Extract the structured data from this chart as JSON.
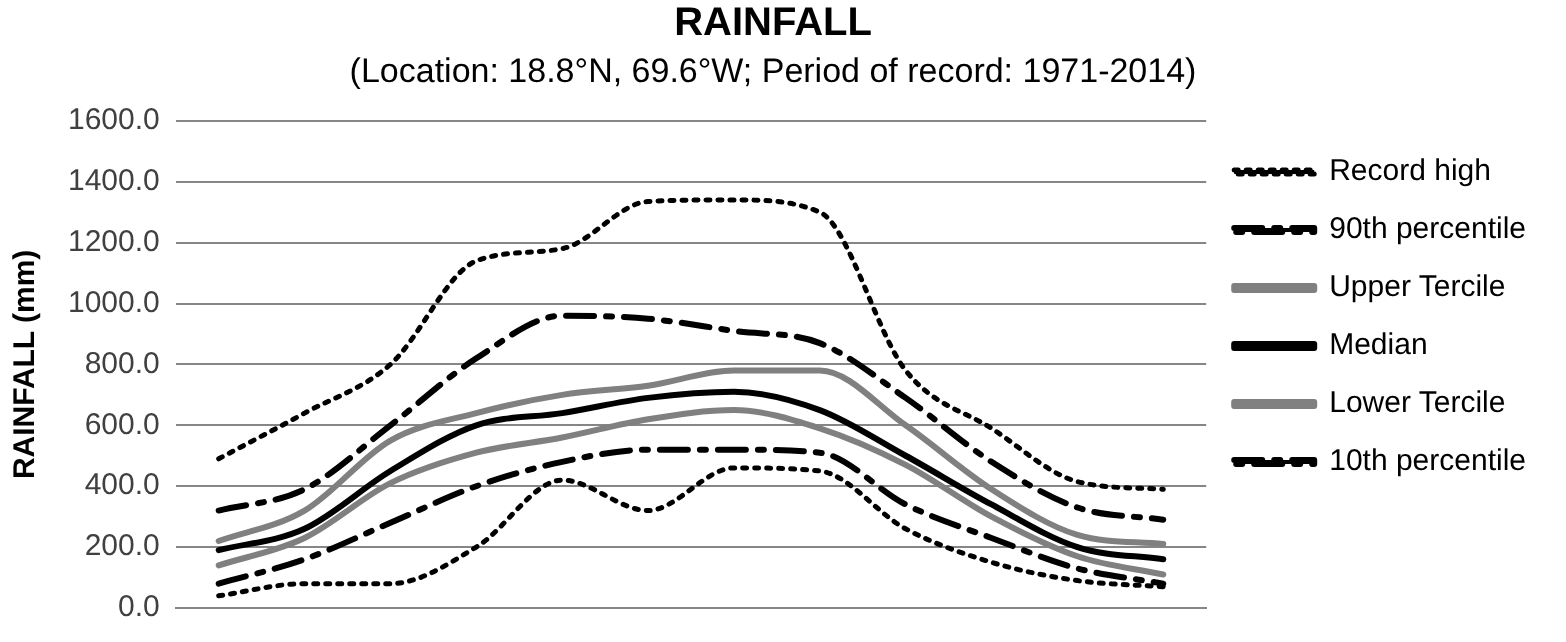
{
  "chart_data": {
    "type": "line",
    "title": "RAINFALL",
    "subtitle": "(Location: 18.8°N, 69.6°W; Period of record: 1971-2014)",
    "ylabel": "RAINFALL (mm)",
    "categories": [
      null,
      null,
      null,
      null,
      null,
      null,
      null,
      null,
      null,
      null,
      null,
      null
    ],
    "series": [
      {
        "name": "Record high",
        "color": "#000000",
        "line_style": "dotted",
        "values": [
          490,
          640,
          800,
          1140,
          1180,
          1335,
          1340,
          1300,
          780,
          590,
          415,
          390
        ]
      },
      {
        "name": "90th percentile",
        "color": "#000000",
        "line_style": "dashed",
        "values": [
          320,
          390,
          600,
          820,
          960,
          950,
          910,
          870,
          690,
          480,
          330,
          290
        ]
      },
      {
        "name": "Upper Tercile",
        "color": "#808080",
        "line_style": "solid",
        "values": [
          220,
          320,
          550,
          640,
          700,
          730,
          780,
          780,
          600,
          390,
          240,
          210
        ]
      },
      {
        "name": "Median",
        "color": "#000000",
        "line_style": "solid",
        "values": [
          190,
          260,
          450,
          600,
          640,
          690,
          710,
          650,
          500,
          340,
          200,
          160
        ]
      },
      {
        "name": "Lower Tercile",
        "color": "#808080",
        "line_style": "solid",
        "values": [
          140,
          230,
          410,
          510,
          560,
          620,
          650,
          590,
          470,
          300,
          170,
          110
        ]
      },
      {
        "name": "10th percentile",
        "color": "#000000",
        "line_style": "dashed",
        "values": [
          80,
          160,
          280,
          400,
          480,
          520,
          520,
          510,
          340,
          230,
          130,
          80
        ]
      },
      {
        "color": "#000000",
        "line_style": "dotted",
        "values": [
          40,
          80,
          80,
          200,
          420,
          320,
          460,
          450,
          260,
          150,
          90,
          70
        ]
      }
    ],
    "ylim": [
      0,
      1600
    ],
    "yticks": [
      {
        "value": 0,
        "label": "0.0"
      },
      {
        "value": 200,
        "label": "200.0"
      },
      {
        "value": 400,
        "label": "400.0"
      },
      {
        "value": 600,
        "label": "600.0"
      },
      {
        "value": 800,
        "label": "800.0"
      },
      {
        "value": 1000,
        "label": "1000.0"
      },
      {
        "value": 1200,
        "label": "1200.0"
      },
      {
        "value": 1400,
        "label": "1400.0"
      },
      {
        "value": 1600,
        "label": "1600.0"
      }
    ],
    "grid": "y",
    "legend": "right",
    "tick_labels": "y"
  }
}
